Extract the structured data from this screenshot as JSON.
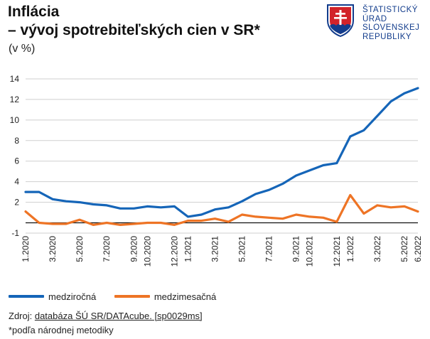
{
  "header": {
    "title_line1": "Inflácia",
    "title_line2": "– vývoj spotrebiteľských cien v SR*",
    "unit": "(v %)"
  },
  "logo": {
    "lines": [
      "ŠTATISTICKÝ",
      "ÚRAD",
      "SLOVENSKEJ",
      "REPUBLIKY"
    ],
    "icon": "slovak-coat-of-arms",
    "text_color": "#123c8c"
  },
  "chart_data": {
    "type": "line",
    "categories": [
      "1.2020",
      "2.2020",
      "3.2020",
      "4.2020",
      "5.2020",
      "6.2020",
      "7.2020",
      "8.2020",
      "9.2020",
      "10.2020",
      "11.2020",
      "12.2020",
      "1.2021",
      "2.2021",
      "3.2021",
      "4.2021",
      "5.2021",
      "6.2021",
      "7.2021",
      "8.2021",
      "9.2021",
      "10.2021",
      "11.2021",
      "12.2021",
      "1.2022",
      "2.2022",
      "3.2022",
      "4.2022",
      "5.2022",
      "6.2022"
    ],
    "tick_labels": [
      "1.2020",
      "3.2020",
      "5.2020",
      "7.2020",
      "9.2020",
      "10.2020",
      "12.2020",
      "1.2021",
      "3.2021",
      "5.2021",
      "7.2021",
      "9.2021",
      "10.2021",
      "12.2021",
      "1.2022",
      "3.2022",
      "5.2022",
      "6.2022"
    ],
    "tick_label_indices": [
      0,
      2,
      4,
      6,
      8,
      9,
      11,
      12,
      14,
      16,
      18,
      20,
      21,
      23,
      24,
      26,
      28,
      29
    ],
    "series": [
      {
        "name": "medziročná",
        "color": "#1565b8",
        "values": [
          3.0,
          3.0,
          2.3,
          2.1,
          2.0,
          1.8,
          1.7,
          1.4,
          1.4,
          1.6,
          1.5,
          1.6,
          0.6,
          0.8,
          1.3,
          1.5,
          2.1,
          2.8,
          3.2,
          3.8,
          4.6,
          5.1,
          5.6,
          5.8,
          8.4,
          9.0,
          10.4,
          11.8,
          12.6,
          13.1
        ]
      },
      {
        "name": "medzimesačná",
        "color": "#ee7425",
        "values": [
          1.1,
          0.0,
          -0.1,
          -0.1,
          0.3,
          -0.2,
          0.0,
          -0.2,
          -0.1,
          0.0,
          0.0,
          -0.2,
          0.2,
          0.2,
          0.4,
          0.1,
          0.8,
          0.6,
          0.5,
          0.4,
          0.8,
          0.6,
          0.5,
          0.1,
          2.7,
          0.9,
          1.7,
          1.5,
          1.6,
          1.1
        ]
      }
    ],
    "ylim": [
      -1,
      14
    ],
    "yticks": [
      -1,
      2,
      4,
      6,
      8,
      10,
      12,
      14
    ],
    "grid": true,
    "legend_position": "bottom-left",
    "xlabel": "",
    "ylabel": ""
  },
  "footer": {
    "source_prefix": "Zdroj: ",
    "source_link": "databáza ŠÚ SR/DATAcube. [sp0029ms]",
    "note": "*podľa národnej metodiky"
  }
}
